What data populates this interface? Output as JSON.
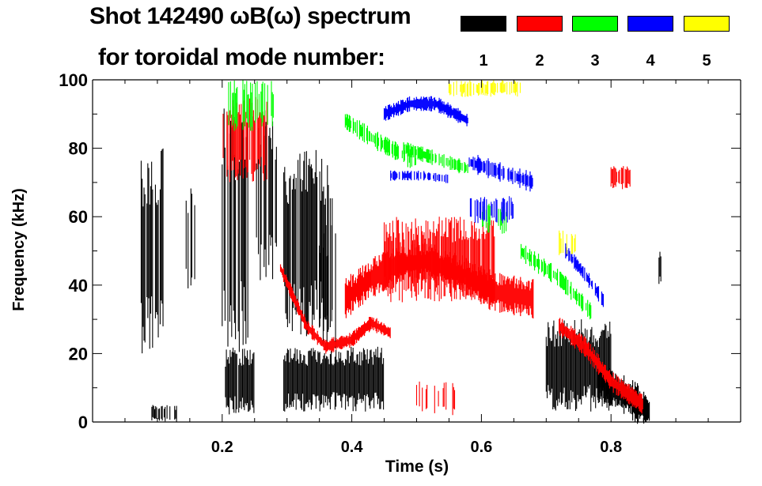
{
  "chart_data": {
    "type": "heatmap",
    "title": "Shot 142490 ωB(ω) spectrum",
    "subtitle": "for toroidal mode number:",
    "xlabel": "Time (s)",
    "ylabel": "Frequency (kHz)",
    "xlim": [
      0,
      1.0
    ],
    "ylim": [
      0,
      100
    ],
    "xticks": [
      0.2,
      0.4,
      0.6,
      0.8
    ],
    "xtick_labels": [
      "0.2",
      "0.4",
      "0.6",
      "0.8"
    ],
    "yticks": [
      0,
      20,
      40,
      60,
      80,
      100
    ],
    "ytick_labels": [
      "0",
      "20",
      "40",
      "60",
      "80",
      "100"
    ],
    "grid": false,
    "legend": {
      "placement": "top-right",
      "entries": [
        {
          "label": "1",
          "color": "#000000"
        },
        {
          "label": "2",
          "color": "#ff0000"
        },
        {
          "label": "3",
          "color": "#00ff00"
        },
        {
          "label": "4",
          "color": "#0000ff"
        },
        {
          "label": "5",
          "color": "#ffff00"
        }
      ]
    },
    "features": [
      {
        "mode": 1,
        "kind": "patch",
        "t": [
          0.075,
          0.11
        ],
        "f": [
          20,
          80
        ],
        "density": 0.9
      },
      {
        "mode": 1,
        "kind": "patch",
        "t": [
          0.14,
          0.165
        ],
        "f": [
          35,
          70
        ],
        "density": 0.6
      },
      {
        "mode": 1,
        "kind": "patch",
        "t": [
          0.2,
          0.24
        ],
        "f": [
          20,
          92
        ],
        "density": 0.8
      },
      {
        "mode": 1,
        "kind": "patch",
        "t": [
          0.205,
          0.25
        ],
        "f": [
          2,
          22
        ],
        "density": 0.9
      },
      {
        "mode": 1,
        "kind": "patch",
        "t": [
          0.25,
          0.285
        ],
        "f": [
          40,
          90
        ],
        "density": 0.5
      },
      {
        "mode": 1,
        "kind": "patch",
        "t": [
          0.295,
          0.37
        ],
        "f": [
          25,
          80
        ],
        "density": 0.8
      },
      {
        "mode": 1,
        "kind": "patch",
        "t": [
          0.295,
          0.45
        ],
        "f": [
          3,
          22
        ],
        "density": 1.0
      },
      {
        "mode": 1,
        "kind": "patch",
        "t": [
          0.35,
          0.38
        ],
        "f": [
          20,
          60
        ],
        "density": 0.5
      },
      {
        "mode": 1,
        "kind": "patch",
        "t": [
          0.7,
          0.8
        ],
        "f": [
          3,
          30
        ],
        "density": 1.0
      },
      {
        "mode": 1,
        "kind": "track",
        "points": [
          [
            0.78,
            12
          ],
          [
            0.82,
            8
          ],
          [
            0.86,
            3
          ]
        ],
        "width": 8,
        "density": 1.0
      },
      {
        "mode": 1,
        "kind": "patch",
        "t": [
          0.09,
          0.13
        ],
        "f": [
          0,
          5
        ],
        "density": 0.4
      },
      {
        "mode": 1,
        "kind": "patch",
        "t": [
          0.874,
          0.878
        ],
        "f": [
          40,
          50
        ],
        "density": 1.0
      },
      {
        "mode": 2,
        "kind": "patch",
        "t": [
          0.2,
          0.27
        ],
        "f": [
          70,
          95
        ],
        "density": 0.8
      },
      {
        "mode": 2,
        "kind": "track",
        "points": [
          [
            0.29,
            45
          ],
          [
            0.33,
            28
          ],
          [
            0.36,
            22
          ],
          [
            0.4,
            24
          ],
          [
            0.43,
            29
          ],
          [
            0.46,
            26
          ]
        ],
        "width": 3,
        "density": 1.0
      },
      {
        "mode": 2,
        "kind": "track",
        "points": [
          [
            0.39,
            36
          ],
          [
            0.43,
            42
          ],
          [
            0.47,
            46
          ],
          [
            0.52,
            47
          ],
          [
            0.58,
            42
          ],
          [
            0.62,
            38
          ],
          [
            0.68,
            36
          ]
        ],
        "width": 8,
        "density": 1.0
      },
      {
        "mode": 2,
        "kind": "patch",
        "t": [
          0.45,
          0.62
        ],
        "f": [
          35,
          60
        ],
        "density": 0.9
      },
      {
        "mode": 2,
        "kind": "track",
        "points": [
          [
            0.72,
            28
          ],
          [
            0.76,
            22
          ],
          [
            0.8,
            12
          ],
          [
            0.85,
            5
          ]
        ],
        "width": 4,
        "density": 1.0
      },
      {
        "mode": 2,
        "kind": "patch",
        "t": [
          0.8,
          0.83
        ],
        "f": [
          68,
          75
        ],
        "density": 0.9
      },
      {
        "mode": 2,
        "kind": "patch",
        "t": [
          0.5,
          0.56
        ],
        "f": [
          2,
          12
        ],
        "density": 0.3
      },
      {
        "mode": 3,
        "kind": "patch",
        "t": [
          0.21,
          0.28
        ],
        "f": [
          85,
          100
        ],
        "density": 0.6
      },
      {
        "mode": 3,
        "kind": "track",
        "points": [
          [
            0.39,
            88
          ],
          [
            0.44,
            82
          ],
          [
            0.5,
            76
          ]
        ],
        "width": 4,
        "density": 0.6
      },
      {
        "mode": 3,
        "kind": "track",
        "points": [
          [
            0.48,
            80
          ],
          [
            0.53,
            77
          ],
          [
            0.58,
            74
          ]
        ],
        "width": 3,
        "density": 0.6
      },
      {
        "mode": 3,
        "kind": "patch",
        "t": [
          0.6,
          0.64
        ],
        "f": [
          55,
          64
        ],
        "density": 0.5
      },
      {
        "mode": 3,
        "kind": "track",
        "points": [
          [
            0.66,
            50
          ],
          [
            0.72,
            42
          ],
          [
            0.77,
            32
          ]
        ],
        "width": 4,
        "density": 0.6
      },
      {
        "mode": 4,
        "kind": "track",
        "points": [
          [
            0.45,
            90
          ],
          [
            0.49,
            93
          ],
          [
            0.53,
            93
          ],
          [
            0.58,
            88
          ]
        ],
        "width": 3,
        "density": 1.0
      },
      {
        "mode": 4,
        "kind": "track",
        "points": [
          [
            0.46,
            72
          ],
          [
            0.51,
            72
          ],
          [
            0.55,
            71
          ]
        ],
        "width": 2,
        "density": 0.6
      },
      {
        "mode": 4,
        "kind": "track",
        "points": [
          [
            0.58,
            76
          ],
          [
            0.63,
            73
          ],
          [
            0.68,
            70
          ]
        ],
        "width": 4,
        "density": 0.8
      },
      {
        "mode": 4,
        "kind": "patch",
        "t": [
          0.58,
          0.65
        ],
        "f": [
          58,
          66
        ],
        "density": 0.5
      },
      {
        "mode": 4,
        "kind": "track",
        "points": [
          [
            0.73,
            50
          ],
          [
            0.76,
            43
          ],
          [
            0.79,
            35
          ]
        ],
        "width": 3,
        "density": 0.6
      },
      {
        "mode": 5,
        "kind": "patch",
        "t": [
          0.55,
          0.66
        ],
        "f": [
          95,
          100
        ],
        "density": 0.6
      },
      {
        "mode": 5,
        "kind": "patch",
        "t": [
          0.72,
          0.75
        ],
        "f": [
          48,
          56
        ],
        "density": 0.5
      }
    ]
  }
}
